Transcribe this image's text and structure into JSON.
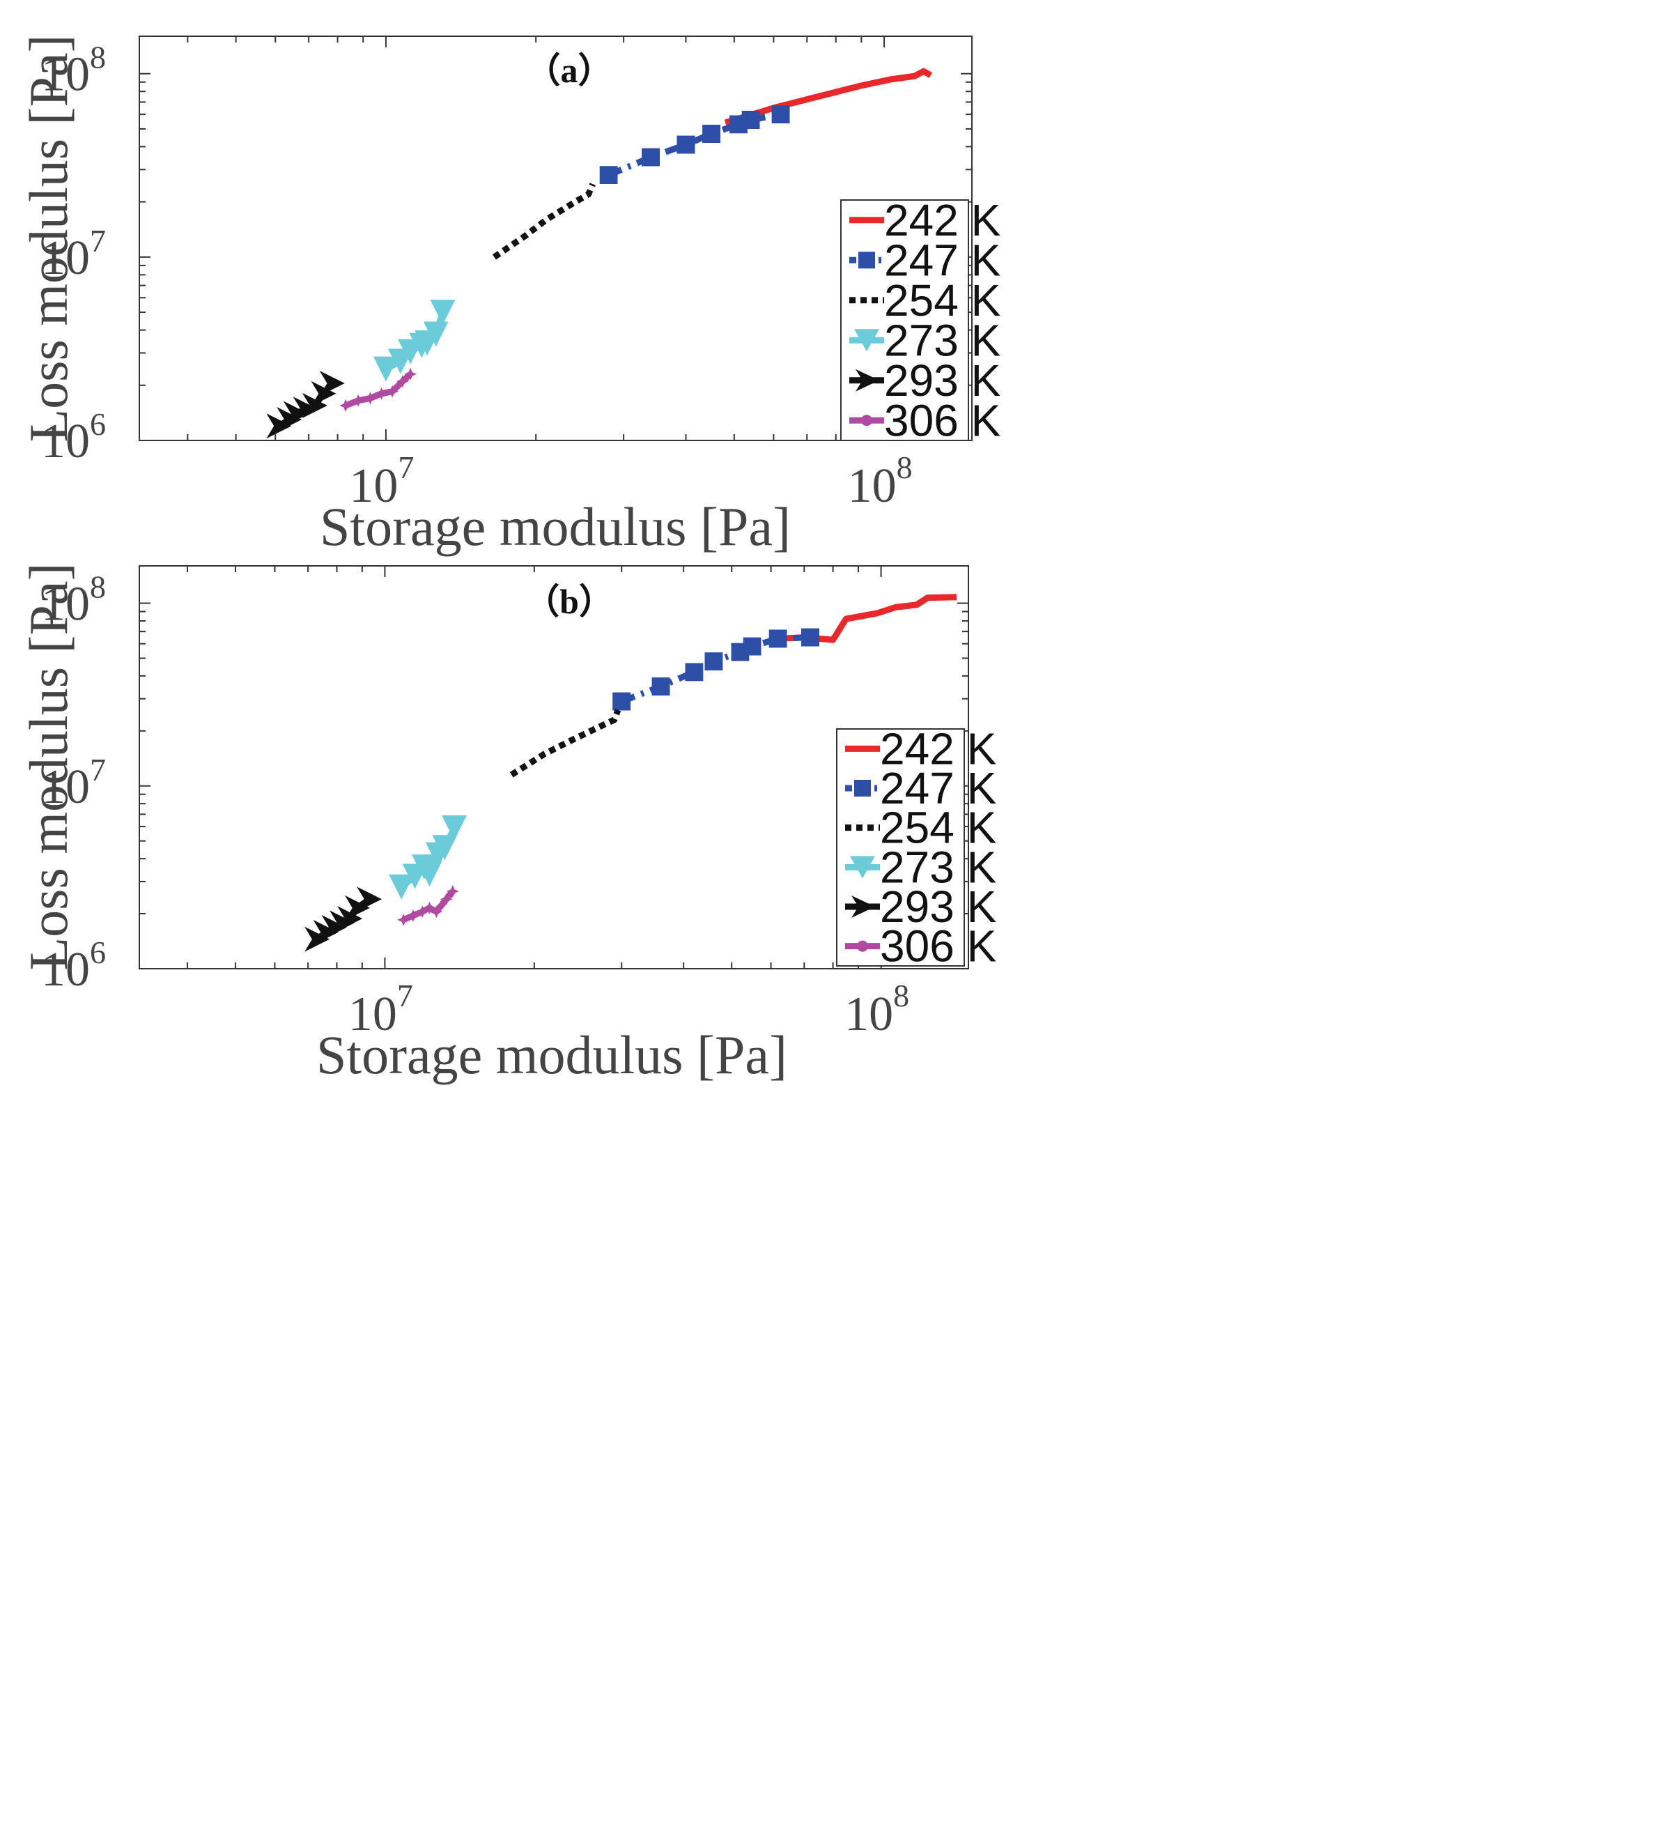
{
  "chart_data": [
    {
      "type": "line",
      "title": "（a）",
      "xlabel": "Storage modulus [Pa]",
      "ylabel": "Loss modulus [Pa]",
      "xscale": "log",
      "yscale": "log",
      "xlim": [
        3200000,
        150000000
      ],
      "ylim": [
        1000000,
        160000000
      ],
      "x_ticks": [
        {
          "value": 10000000,
          "base": "10",
          "exp": "7"
        },
        {
          "value": 100000000,
          "base": "10",
          "exp": "8"
        }
      ],
      "y_ticks": [
        {
          "value": 1000000,
          "base": "10",
          "exp": "6"
        },
        {
          "value": 10000000,
          "base": "10",
          "exp": "7"
        },
        {
          "value": 100000000,
          "base": "10",
          "exp": "8"
        }
      ],
      "grid": false,
      "legend_position": "right",
      "series": [
        {
          "name": "242 K",
          "color": "#e8282b",
          "style": "solid",
          "marker": "none",
          "x": [
            48000000,
            60000000,
            75000000,
            90000000,
            103000000,
            115000000,
            120000000,
            124000000
          ],
          "y": [
            54000000,
            65000000,
            76000000,
            86000000,
            93000000,
            97000000,
            103000000,
            98000000
          ]
        },
        {
          "name": "247 K",
          "color": "#2e4fa8",
          "style": "dashdot",
          "marker": "square",
          "x": [
            28000000,
            34000000,
            40000000,
            45000000,
            51000000,
            54000000,
            62000000
          ],
          "y": [
            28000000,
            35000000,
            41000000,
            47000000,
            53000000,
            56000000,
            60000000
          ]
        },
        {
          "name": "254 K",
          "color": "#111111",
          "style": "dotted",
          "marker": "none",
          "x": [
            16500000,
            19000000,
            21000000,
            24000000,
            25500000,
            26000000
          ],
          "y": [
            10000000,
            13000000,
            16000000,
            20000000,
            22000000,
            25000000
          ]
        },
        {
          "name": "273 K",
          "color": "#6ccbd9",
          "style": "solid",
          "marker": "triangle-down",
          "x": [
            10000000,
            10700000,
            11200000,
            11800000,
            12100000,
            12600000,
            13000000
          ],
          "y": [
            2450000,
            2700000,
            3050000,
            3300000,
            3400000,
            3800000,
            5000000
          ]
        },
        {
          "name": "293 K",
          "color": "#111111",
          "style": "solid",
          "marker": "triangle-right",
          "x": [
            6100000,
            6400000,
            6600000,
            6900000,
            7200000,
            7500000,
            7800000
          ],
          "y": [
            1200000,
            1300000,
            1400000,
            1480000,
            1550000,
            1800000,
            2050000
          ]
        },
        {
          "name": "306 K",
          "color": "#b04aa0",
          "style": "solid",
          "marker": "star",
          "x": [
            8300000,
            8800000,
            9300000,
            9800000,
            10300000,
            10800000,
            11200000
          ],
          "y": [
            1550000,
            1650000,
            1700000,
            1800000,
            1850000,
            2100000,
            2300000
          ]
        }
      ]
    },
    {
      "type": "line",
      "title": "（b）",
      "xlabel": "Storage modulus [Pa]",
      "ylabel": "Loss modulus [Pa]",
      "xscale": "log",
      "yscale": "log",
      "xlim": [
        3200000,
        150000000
      ],
      "ylim": [
        1000000,
        160000000
      ],
      "x_ticks": [
        {
          "value": 10000000,
          "base": "10",
          "exp": "7"
        },
        {
          "value": 100000000,
          "base": "10",
          "exp": "8"
        }
      ],
      "y_ticks": [
        {
          "value": 1000000,
          "base": "10",
          "exp": "6"
        },
        {
          "value": 10000000,
          "base": "10",
          "exp": "7"
        },
        {
          "value": 100000000,
          "base": "10",
          "exp": "8"
        }
      ],
      "grid": false,
      "legend_position": "right",
      "series": [
        {
          "name": "242 K",
          "color": "#e8282b",
          "style": "solid",
          "marker": "none",
          "x": [
            62000000,
            70000000,
            80000000,
            85000000,
            98000000,
            107000000,
            118000000,
            124000000,
            142000000
          ],
          "y": [
            64000000,
            65000000,
            63000000,
            82000000,
            88000000,
            95000000,
            98000000,
            107000000,
            108000000
          ]
        },
        {
          "name": "247 K",
          "color": "#2e4fa8",
          "style": "dashdot",
          "marker": "square",
          "x": [
            30000000,
            36000000,
            42000000,
            46000000,
            52000000,
            55000000,
            62000000,
            72000000
          ],
          "y": [
            29000000,
            35000000,
            42000000,
            48000000,
            54000000,
            58000000,
            64000000,
            65000000
          ]
        },
        {
          "name": "254 K",
          "color": "#111111",
          "style": "dotted",
          "marker": "none",
          "x": [
            18000000,
            21000000,
            24000000,
            27000000,
            29000000,
            29500000
          ],
          "y": [
            11500000,
            15000000,
            18000000,
            21000000,
            23000000,
            26000000
          ]
        },
        {
          "name": "273 K",
          "color": "#6ccbd9",
          "style": "solid",
          "marker": "triangle-down",
          "x": [
            10800000,
            11500000,
            12000000,
            12300000,
            12800000,
            13200000,
            13800000
          ],
          "y": [
            2800000,
            3200000,
            3600000,
            3300000,
            4200000,
            4600000,
            5900000
          ]
        },
        {
          "name": "293 K",
          "color": "#111111",
          "style": "solid",
          "marker": "triangle-right",
          "x": [
            7300000,
            7600000,
            7900000,
            8200000,
            8500000,
            8800000,
            9300000
          ],
          "y": [
            1450000,
            1580000,
            1680000,
            1780000,
            1880000,
            2150000,
            2400000
          ]
        },
        {
          "name": "306 K",
          "color": "#b04aa0",
          "style": "solid",
          "marker": "star",
          "x": [
            10900000,
            11400000,
            11900000,
            12300000,
            12700000,
            13300000,
            13700000
          ],
          "y": [
            1850000,
            1950000,
            2050000,
            2150000,
            2050000,
            2400000,
            2650000
          ]
        }
      ]
    }
  ]
}
